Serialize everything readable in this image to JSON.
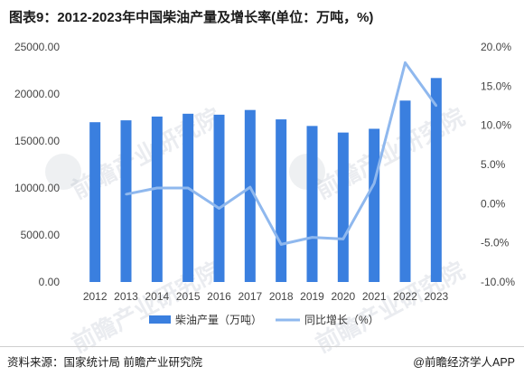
{
  "title": "图表9：2012-2023年中国柴油产量及增长率(单位：万吨，%)",
  "source": "资料来源：国家统计局 前瞻产业研究院",
  "brand": "@前瞻经济学人APP",
  "watermark": "前瞻产业研究院",
  "colors": {
    "bar": "#3a7fdf",
    "line": "#8fb8ee"
  },
  "chart_data": {
    "type": "bar",
    "categories": [
      "2012",
      "2013",
      "2014",
      "2015",
      "2016",
      "2017",
      "2018",
      "2019",
      "2020",
      "2021",
      "2022",
      "2023"
    ],
    "left_axis": {
      "ylim": [
        0,
        25000
      ],
      "ticks": [
        "0.00",
        "5000.00",
        "10000.00",
        "15000.00",
        "20000.00",
        "25000.00"
      ]
    },
    "right_axis": {
      "ylim": [
        -10,
        20
      ],
      "ticks": [
        "-10.0%",
        "-5.0%",
        "0.0%",
        "5.0%",
        "10.0%",
        "15.0%",
        "20.0%"
      ]
    },
    "series": [
      {
        "name": "柴油产量（万吨）",
        "type": "bar",
        "axis": "left",
        "values": [
          17000,
          17200,
          17600,
          17900,
          17800,
          18300,
          17300,
          16600,
          15900,
          16300,
          19300,
          21700
        ]
      },
      {
        "name": "同比增长（%）",
        "type": "line",
        "axis": "right",
        "values": [
          null,
          1.2,
          2.0,
          2.0,
          -0.6,
          2.1,
          -5.2,
          -4.3,
          -4.5,
          2.6,
          18.0,
          12.5
        ]
      }
    ],
    "legend_position": "bottom",
    "grid": false
  }
}
